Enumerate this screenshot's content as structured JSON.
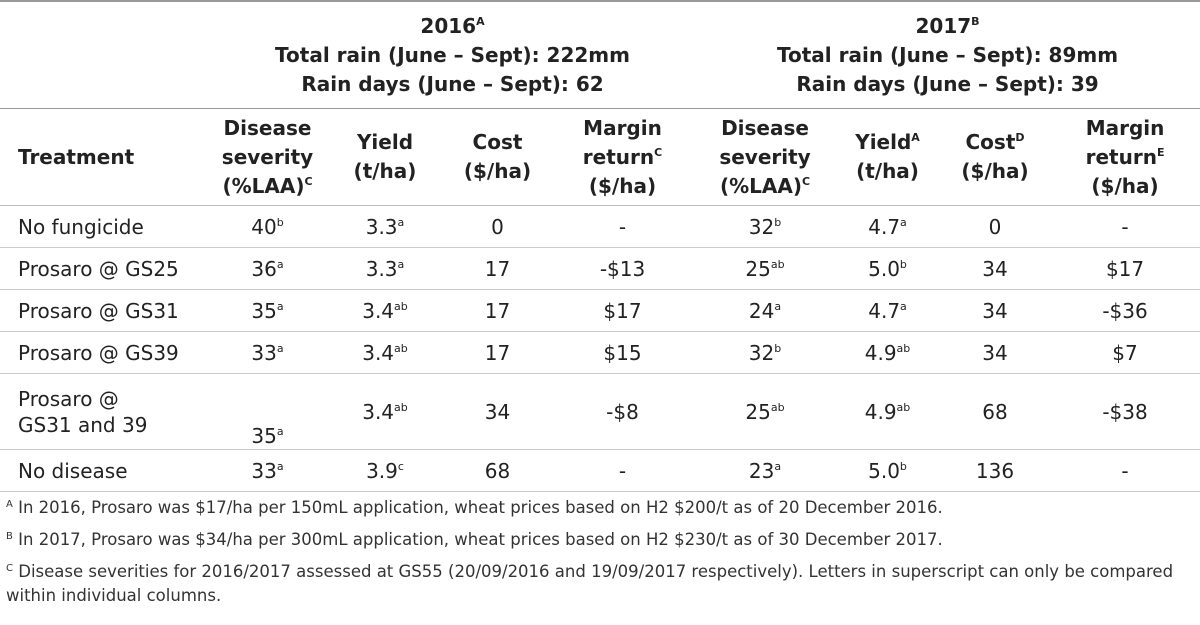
{
  "groups": [
    {
      "year": "2016",
      "sup": "A",
      "lines": [
        "Total rain (June – Sept): 222mm",
        "Rain days (June – Sept): 62"
      ]
    },
    {
      "year": "2017",
      "sup": "B",
      "lines": [
        "Total rain (June – Sept): 89mm",
        "Rain days (June – Sept): 39"
      ]
    }
  ],
  "header": {
    "treatment": "Treatment",
    "columns": [
      [
        {
          "text": "Disease"
        },
        {
          "text": "severity"
        },
        {
          "text": "(%LAA)",
          "sup": "C"
        }
      ],
      [
        {
          "text": "Yield"
        },
        {
          "text": "(t/ha)"
        }
      ],
      [
        {
          "text": "Cost"
        },
        {
          "text": "($/ha)"
        }
      ],
      [
        {
          "text": "Margin"
        },
        {
          "text": "return",
          "sup": "C"
        },
        {
          "text": "($/ha)"
        }
      ],
      [
        {
          "text": "Disease"
        },
        {
          "text": "severity"
        },
        {
          "text": "(%LAA)",
          "sup": "C"
        }
      ],
      [
        {
          "text": "Yield",
          "sup": "A"
        },
        {
          "text": "(t/ha)"
        }
      ],
      [
        {
          "text": "Cost",
          "sup": "D"
        },
        {
          "text": "($/ha)"
        }
      ],
      [
        {
          "text": "Margin"
        },
        {
          "text": "return",
          "sup": "E"
        },
        {
          "text": "($/ha)"
        }
      ]
    ]
  },
  "rows": [
    {
      "treatment": [
        "No fungicide"
      ],
      "cells": [
        {
          "text": "40",
          "sup": "b"
        },
        {
          "text": "3.3",
          "sup": "a"
        },
        {
          "text": "0"
        },
        {
          "text": "-"
        },
        {
          "text": "32",
          "sup": "b"
        },
        {
          "text": "4.7",
          "sup": "a"
        },
        {
          "text": "0"
        },
        {
          "text": "-"
        }
      ]
    },
    {
      "treatment": [
        "Prosaro @ GS25"
      ],
      "cells": [
        {
          "text": "36",
          "sup": "a"
        },
        {
          "text": "3.3",
          "sup": "a"
        },
        {
          "text": "17"
        },
        {
          "text": "-$13"
        },
        {
          "text": "25",
          "sup": "ab"
        },
        {
          "text": "5.0",
          "sup": "b"
        },
        {
          "text": "34"
        },
        {
          "text": "$17"
        }
      ]
    },
    {
      "treatment": [
        "Prosaro @ GS31"
      ],
      "cells": [
        {
          "text": "35",
          "sup": "a"
        },
        {
          "text": "3.4",
          "sup": "ab"
        },
        {
          "text": "17"
        },
        {
          "text": "$17"
        },
        {
          "text": "24",
          "sup": "a"
        },
        {
          "text": "4.7",
          "sup": "a"
        },
        {
          "text": "34"
        },
        {
          "text": "-$36"
        }
      ]
    },
    {
      "treatment": [
        "Prosaro @ GS39"
      ],
      "cells": [
        {
          "text": "33",
          "sup": "a"
        },
        {
          "text": "3.4",
          "sup": "ab"
        },
        {
          "text": "17"
        },
        {
          "text": "$15"
        },
        {
          "text": "32",
          "sup": "b"
        },
        {
          "text": "4.9",
          "sup": "ab"
        },
        {
          "text": "34"
        },
        {
          "text": "$7"
        }
      ]
    },
    {
      "treatment": [
        "Prosaro @",
        "GS31 and 39"
      ],
      "cells": [
        {
          "text": "35",
          "sup": "a"
        },
        {
          "text": "3.4",
          "sup": "ab"
        },
        {
          "text": "34"
        },
        {
          "text": "-$8"
        },
        {
          "text": "25",
          "sup": "ab"
        },
        {
          "text": "4.9",
          "sup": "ab"
        },
        {
          "text": "68"
        },
        {
          "text": "-$38"
        }
      ]
    },
    {
      "treatment": [
        "No disease"
      ],
      "cells": [
        {
          "text": "33",
          "sup": "a"
        },
        {
          "text": "3.9",
          "sup": "c"
        },
        {
          "text": "68"
        },
        {
          "text": "-"
        },
        {
          "text": "23",
          "sup": "a"
        },
        {
          "text": "5.0",
          "sup": "b"
        },
        {
          "text": "136"
        },
        {
          "text": "-"
        }
      ]
    }
  ],
  "footnotes": [
    {
      "mark": "A",
      "text": "In 2016, Prosaro was $17/ha per 150mL application, wheat prices based on H2 $200/t as of 20 December 2016."
    },
    {
      "mark": "B",
      "text": "In 2017, Prosaro was $34/ha per 300mL application, wheat prices based on H2 $230/t as of 30 December 2017."
    },
    {
      "mark": "C",
      "text": "Disease severities for 2016/2017 assessed at GS55 (20/09/2016 and 19/09/2017 respectively). Letters in superscript can only be compared within individual columns."
    }
  ]
}
